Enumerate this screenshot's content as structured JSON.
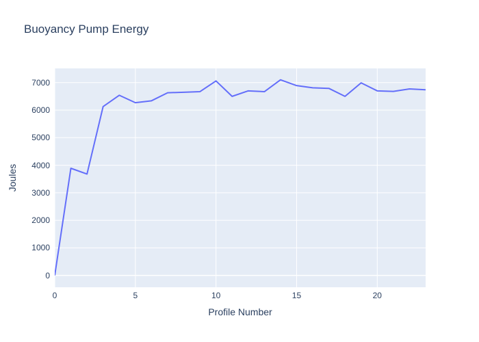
{
  "title": "Buoyancy Pump Energy",
  "axes": {
    "x_title": "Profile Number",
    "y_title": "Joules"
  },
  "colors": {
    "line": "#636efa",
    "plot_background": "#e5ecf6",
    "grid": "#ffffff",
    "text": "#2a3f5f"
  },
  "chart_data": {
    "type": "line",
    "title": "Buoyancy Pump Energy",
    "xlabel": "Profile Number",
    "ylabel": "Joules",
    "x": [
      0,
      1,
      2,
      3,
      4,
      5,
      6,
      7,
      8,
      9,
      10,
      11,
      12,
      13,
      14,
      15,
      16,
      17,
      18,
      19,
      20,
      21,
      22,
      23
    ],
    "y": [
      0,
      3890,
      3680,
      6130,
      6540,
      6270,
      6340,
      6630,
      6650,
      6670,
      7060,
      6500,
      6700,
      6670,
      7100,
      6890,
      6810,
      6790,
      6500,
      6990,
      6700,
      6680,
      6770,
      6740
    ],
    "xlim": [
      0,
      23.0
    ],
    "ylim": [
      -430,
      7515
    ],
    "x_ticks": [
      0,
      5,
      10,
      15,
      20
    ],
    "y_ticks": [
      0,
      1000,
      2000,
      3000,
      4000,
      5000,
      6000,
      7000
    ],
    "grid": true,
    "legend": false
  }
}
